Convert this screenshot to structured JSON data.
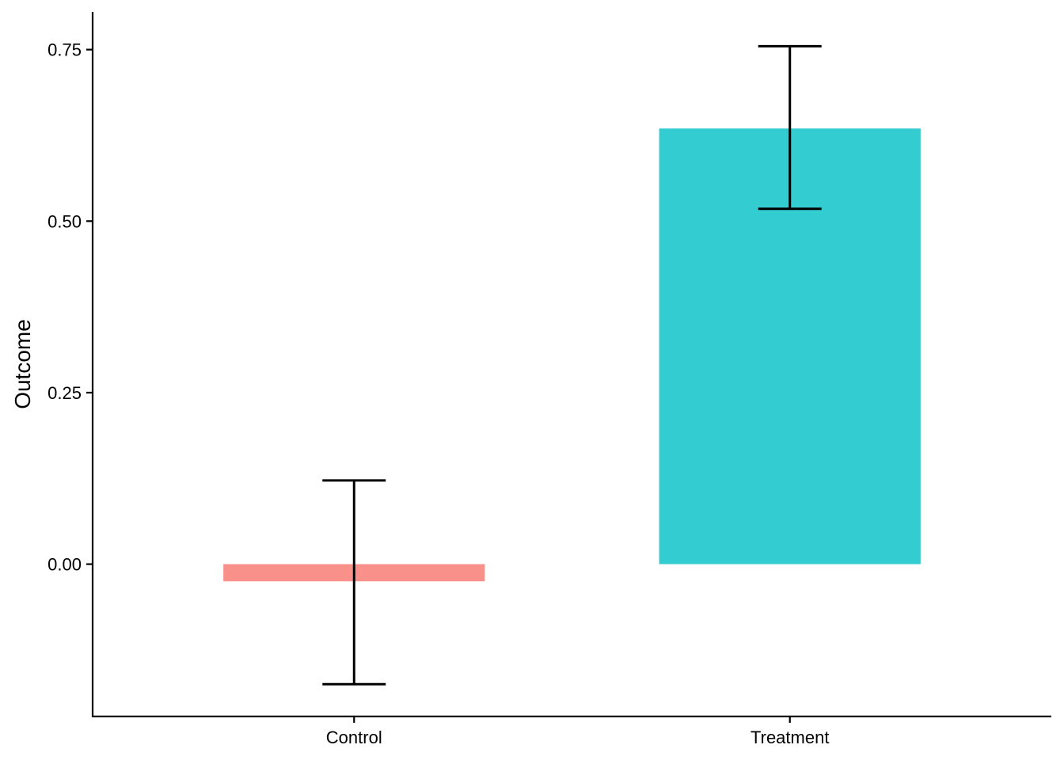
{
  "chart_data": {
    "type": "bar",
    "title": "",
    "xlabel": "",
    "ylabel": "Outcome",
    "categories": [
      "Control",
      "Treatment"
    ],
    "values": [
      -0.025,
      0.635
    ],
    "error_bars": [
      {
        "low": -0.175,
        "high": 0.122
      },
      {
        "low": 0.518,
        "high": 0.755
      }
    ],
    "colors": [
      "#F8766D",
      "#00BFC4"
    ],
    "bar_opacity": 0.8,
    "ylim": [
      -0.222,
      0.805
    ],
    "yticks": [
      0.0,
      0.25,
      0.5,
      0.75
    ],
    "ytick_labels": [
      "0.00",
      "0.25",
      "0.50",
      "0.75"
    ],
    "grid": false,
    "legend": "none"
  }
}
